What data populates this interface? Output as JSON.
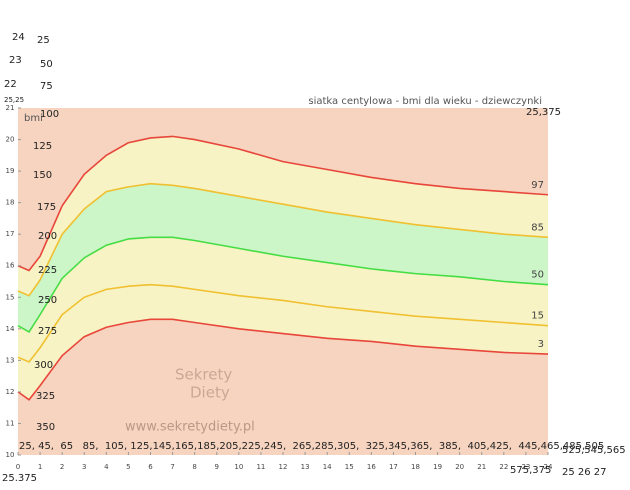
{
  "chart_data": {
    "type": "line",
    "title": "siatka centylowa - bmi dla wieku - dziewczynki",
    "y_label": "bmi",
    "x": [
      0,
      0.5,
      1,
      2,
      3,
      4,
      5,
      6,
      7,
      8,
      10,
      12,
      14,
      16,
      18,
      20,
      22,
      24
    ],
    "series": [
      {
        "name": "97",
        "color": "#e8463a",
        "values": [
          16.0,
          15.85,
          16.3,
          17.9,
          18.9,
          19.5,
          19.9,
          20.05,
          20.1,
          20.0,
          19.7,
          19.3,
          19.05,
          18.8,
          18.6,
          18.45,
          18.35,
          18.25
        ]
      },
      {
        "name": "85",
        "color": "#f0c030",
        "values": [
          15.2,
          15.05,
          15.55,
          17.0,
          17.8,
          18.35,
          18.5,
          18.6,
          18.55,
          18.45,
          18.2,
          17.95,
          17.7,
          17.5,
          17.3,
          17.15,
          17.0,
          16.9
        ]
      },
      {
        "name": "50",
        "color": "#44dd44",
        "values": [
          14.1,
          13.9,
          14.45,
          15.6,
          16.25,
          16.65,
          16.85,
          16.9,
          16.9,
          16.8,
          16.55,
          16.3,
          16.1,
          15.9,
          15.75,
          15.65,
          15.5,
          15.4
        ]
      },
      {
        "name": "15",
        "color": "#f0c030",
        "values": [
          13.1,
          12.95,
          13.4,
          14.45,
          15.0,
          15.25,
          15.35,
          15.4,
          15.35,
          15.25,
          15.05,
          14.9,
          14.7,
          14.55,
          14.4,
          14.3,
          14.2,
          14.1
        ]
      },
      {
        "name": "3",
        "color": "#e8463a",
        "values": [
          12.0,
          11.75,
          12.2,
          13.15,
          13.75,
          14.05,
          14.2,
          14.3,
          14.3,
          14.2,
          14.0,
          13.85,
          13.7,
          13.6,
          13.45,
          13.35,
          13.25,
          13.2
        ]
      }
    ],
    "band_colors": [
      "#f7f3c4",
      "#ccf5c8",
      "#f7f3c4"
    ],
    "background_color": "#f7d4bf",
    "xlim": [
      0,
      24
    ],
    "xticks": [
      0,
      1,
      2,
      3,
      4,
      5,
      6,
      7,
      8,
      9,
      10,
      11,
      12,
      13,
      14,
      15,
      16,
      17,
      18,
      19,
      20,
      21,
      22,
      23,
      24
    ],
    "ylim": [
      10,
      21
    ],
    "yticks": [
      10,
      11,
      12,
      13,
      14,
      15,
      16,
      17,
      18,
      19,
      20,
      21
    ],
    "watermark": [
      "Sekrety",
      "Diety",
      "www.sekretydiety.pl"
    ]
  },
  "overlay_labels": [
    "24",
    "25",
    "23",
    "50",
    "22",
    "75",
    "25,25",
    "100",
    "125",
    "150",
    "175",
    "200",
    "225",
    "250",
    "275",
    "300",
    "325",
    "350",
    "25,375",
    "25, 45,  65   85,  105, 125,145,165,185,205,225,245,  265,285,305,  325,345,365,  385,  405,425,  445,465,485,505",
    "525,545,565",
    "575,375",
    "25 26 27",
    "25.375"
  ]
}
